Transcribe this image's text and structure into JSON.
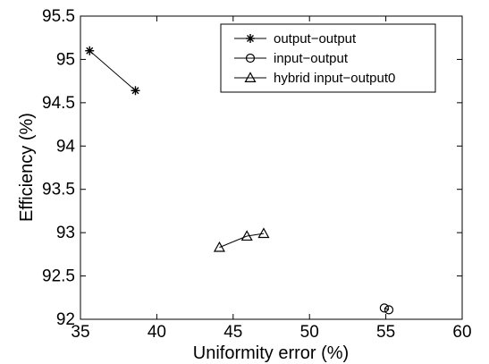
{
  "chart_data": {
    "type": "scatter",
    "title": "",
    "xlabel": "Uniformity error (%)",
    "ylabel": "Efficiency (%)",
    "xlim": [
      35,
      60
    ],
    "ylim": [
      92,
      95.5
    ],
    "xticks": [
      "35",
      "40",
      "45",
      "50",
      "55",
      "60"
    ],
    "yticks": [
      "92",
      "92.5",
      "93",
      "93.5",
      "94",
      "94.5",
      "95",
      "95.5"
    ],
    "grid": false,
    "legend_position": "top-right",
    "series": [
      {
        "name": "output−output",
        "marker": "star",
        "connected": true,
        "x": [
          35.6,
          38.6
        ],
        "y": [
          95.1,
          94.64
        ]
      },
      {
        "name": "input−output",
        "marker": "circle",
        "connected": true,
        "x": [
          54.9,
          55.2
        ],
        "y": [
          92.13,
          92.11
        ]
      },
      {
        "name": "hybrid input−output0",
        "marker": "triangle",
        "connected": true,
        "x": [
          44.1,
          45.9,
          47.0
        ],
        "y": [
          92.83,
          92.96,
          92.99
        ]
      }
    ],
    "colors": {
      "line": "#000000",
      "background": "#ffffff"
    }
  }
}
